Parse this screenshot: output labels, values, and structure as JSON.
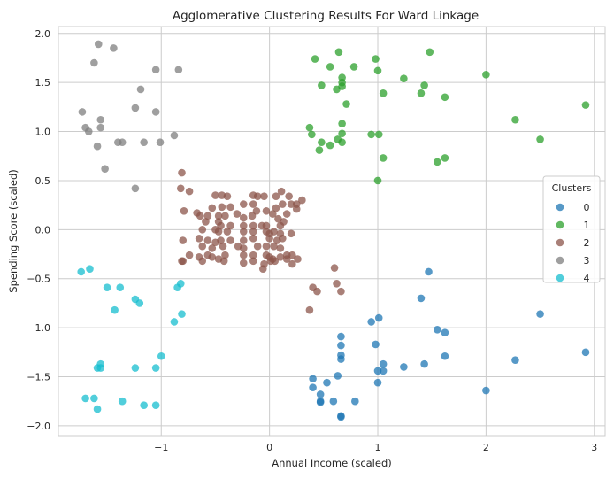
{
  "chart_data": {
    "type": "scatter",
    "title": "Agglomerative Clustering Results For Ward Linkage",
    "xlabel": "Annual Income (scaled)",
    "ylabel": "Spending Score (scaled)",
    "xlim": [
      -1.95,
      3.1
    ],
    "ylim": [
      -2.1,
      2.07
    ],
    "xticks": [
      -1,
      0,
      1,
      2,
      3
    ],
    "yticks": [
      -2.0,
      -1.5,
      -1.0,
      -0.5,
      0.0,
      0.5,
      1.0,
      1.5,
      2.0
    ],
    "xtick_labels": [
      "−1",
      "0",
      "1",
      "2",
      "3"
    ],
    "ytick_labels": [
      "−2.0",
      "−1.5",
      "−1.0",
      "−0.5",
      "0.0",
      "0.5",
      "1.0",
      "1.5",
      "2.0"
    ],
    "grid": true,
    "legend": {
      "title": "Clusters",
      "placement": "center-right"
    },
    "series": [
      {
        "name": "0",
        "color": "#1f77b4",
        "points": [
          [
            1.47,
            -0.43
          ],
          [
            1.4,
            -0.7
          ],
          [
            0.94,
            -0.94
          ],
          [
            1.01,
            -0.9
          ],
          [
            1.55,
            -1.02
          ],
          [
            1.62,
            -1.05
          ],
          [
            2.5,
            -0.86
          ],
          [
            0.66,
            -1.09
          ],
          [
            0.98,
            -1.17
          ],
          [
            0.66,
            -1.18
          ],
          [
            0.66,
            -1.28
          ],
          [
            0.66,
            -1.32
          ],
          [
            1.62,
            -1.29
          ],
          [
            2.92,
            -1.25
          ],
          [
            2.27,
            -1.33
          ],
          [
            1.05,
            -1.37
          ],
          [
            1.43,
            -1.37
          ],
          [
            1.24,
            -1.4
          ],
          [
            1.05,
            -1.44
          ],
          [
            1.0,
            -1.44
          ],
          [
            0.4,
            -1.52
          ],
          [
            0.63,
            -1.49
          ],
          [
            0.4,
            -1.61
          ],
          [
            0.53,
            -1.56
          ],
          [
            1.0,
            -1.56
          ],
          [
            2.0,
            -1.64
          ],
          [
            0.47,
            -1.68
          ],
          [
            0.47,
            -1.75
          ],
          [
            0.59,
            -1.75
          ],
          [
            0.79,
            -1.75
          ],
          [
            0.66,
            -1.9
          ],
          [
            0.66,
            -1.91
          ],
          [
            0.47,
            -1.76
          ]
        ]
      },
      {
        "name": "1",
        "color": "#2ca02c",
        "points": [
          [
            0.42,
            1.74
          ],
          [
            0.64,
            1.81
          ],
          [
            0.98,
            1.74
          ],
          [
            1.48,
            1.81
          ],
          [
            0.56,
            1.66
          ],
          [
            0.78,
            1.66
          ],
          [
            1.0,
            1.62
          ],
          [
            0.48,
            1.47
          ],
          [
            0.67,
            1.55
          ],
          [
            0.67,
            1.5
          ],
          [
            0.62,
            1.43
          ],
          [
            0.67,
            1.46
          ],
          [
            1.24,
            1.54
          ],
          [
            1.43,
            1.47
          ],
          [
            1.05,
            1.39
          ],
          [
            1.4,
            1.39
          ],
          [
            1.62,
            1.35
          ],
          [
            2.0,
            1.58
          ],
          [
            0.71,
            1.28
          ],
          [
            2.92,
            1.27
          ],
          [
            2.27,
            1.12
          ],
          [
            0.37,
            1.04
          ],
          [
            0.67,
            1.08
          ],
          [
            0.39,
            0.97
          ],
          [
            0.67,
            0.98
          ],
          [
            0.94,
            0.97
          ],
          [
            1.01,
            0.97
          ],
          [
            0.48,
            0.89
          ],
          [
            0.56,
            0.86
          ],
          [
            0.63,
            0.92
          ],
          [
            0.67,
            0.89
          ],
          [
            0.46,
            0.81
          ],
          [
            2.5,
            0.92
          ],
          [
            1.05,
            0.73
          ],
          [
            1.55,
            0.69
          ],
          [
            1.62,
            0.73
          ],
          [
            1.0,
            0.5
          ]
        ]
      },
      {
        "name": "2",
        "color": "#8c564b",
        "points": [
          [
            -0.81,
            0.58
          ],
          [
            -0.82,
            0.42
          ],
          [
            -0.74,
            0.39
          ],
          [
            -0.5,
            0.35
          ],
          [
            -0.44,
            0.35
          ],
          [
            -0.39,
            0.34
          ],
          [
            -0.15,
            0.35
          ],
          [
            -0.11,
            0.34
          ],
          [
            -0.05,
            0.34
          ],
          [
            0.11,
            0.39
          ],
          [
            0.06,
            0.34
          ],
          [
            0.18,
            0.34
          ],
          [
            -0.79,
            0.19
          ],
          [
            -0.67,
            0.17
          ],
          [
            -0.53,
            0.22
          ],
          [
            -0.44,
            0.23
          ],
          [
            -0.36,
            0.23
          ],
          [
            -0.24,
            0.26
          ],
          [
            -0.15,
            0.26
          ],
          [
            -0.12,
            0.19
          ],
          [
            -0.03,
            0.19
          ],
          [
            0.12,
            0.26
          ],
          [
            0.06,
            0.22
          ],
          [
            0.2,
            0.26
          ],
          [
            0.25,
            0.26
          ],
          [
            0.3,
            0.3
          ],
          [
            -0.64,
            0.14
          ],
          [
            -0.57,
            0.14
          ],
          [
            -0.47,
            0.14
          ],
          [
            -0.41,
            0.14
          ],
          [
            -0.3,
            0.16
          ],
          [
            -0.24,
            0.12
          ],
          [
            -0.16,
            0.14
          ],
          [
            0.03,
            0.16
          ],
          [
            0.08,
            0.11
          ],
          [
            0.16,
            0.16
          ],
          [
            0.25,
            0.21
          ],
          [
            -0.59,
            0.08
          ],
          [
            -0.47,
            0.08
          ],
          [
            -0.45,
            0.04
          ],
          [
            -0.36,
            0.04
          ],
          [
            -0.24,
            0.04
          ],
          [
            -0.15,
            0.04
          ],
          [
            -0.07,
            0.04
          ],
          [
            -0.03,
            0.04
          ],
          [
            0.1,
            0.04
          ],
          [
            0.13,
            0.08
          ],
          [
            -0.62,
            0.0
          ],
          [
            -0.5,
            0.0
          ],
          [
            -0.47,
            -0.02
          ],
          [
            -0.39,
            -0.02
          ],
          [
            -0.24,
            -0.02
          ],
          [
            -0.15,
            -0.02
          ],
          [
            -0.03,
            -0.02
          ],
          [
            0.0,
            -0.04
          ],
          [
            0.04,
            -0.02
          ],
          [
            0.1,
            -0.04
          ],
          [
            0.2,
            -0.04
          ],
          [
            -0.8,
            -0.11
          ],
          [
            -0.65,
            -0.09
          ],
          [
            -0.57,
            -0.11
          ],
          [
            -0.5,
            -0.13
          ],
          [
            -0.45,
            -0.11
          ],
          [
            -0.36,
            -0.11
          ],
          [
            -0.24,
            -0.11
          ],
          [
            -0.15,
            -0.09
          ],
          [
            0.0,
            -0.09
          ],
          [
            0.07,
            -0.11
          ],
          [
            0.12,
            -0.09
          ],
          [
            -0.62,
            -0.17
          ],
          [
            -0.53,
            -0.19
          ],
          [
            -0.43,
            -0.17
          ],
          [
            -0.29,
            -0.17
          ],
          [
            -0.24,
            -0.19
          ],
          [
            -0.11,
            -0.17
          ],
          [
            -0.03,
            -0.17
          ],
          [
            0.04,
            -0.17
          ],
          [
            0.1,
            -0.19
          ],
          [
            -0.74,
            -0.26
          ],
          [
            -0.65,
            -0.28
          ],
          [
            -0.57,
            -0.26
          ],
          [
            -0.53,
            -0.28
          ],
          [
            -0.41,
            -0.26
          ],
          [
            -0.24,
            -0.26
          ],
          [
            -0.15,
            -0.26
          ],
          [
            -0.03,
            -0.26
          ],
          [
            0.0,
            -0.28
          ],
          [
            0.03,
            -0.3
          ],
          [
            0.1,
            -0.28
          ],
          [
            0.16,
            -0.26
          ],
          [
            0.21,
            -0.26
          ],
          [
            -0.81,
            -0.32
          ],
          [
            -0.8,
            -0.32
          ],
          [
            -0.62,
            -0.32
          ],
          [
            -0.47,
            -0.3
          ],
          [
            -0.42,
            -0.32
          ],
          [
            -0.24,
            -0.34
          ],
          [
            -0.15,
            -0.32
          ],
          [
            -0.05,
            -0.35
          ],
          [
            0.01,
            -0.32
          ],
          [
            0.05,
            -0.32
          ],
          [
            0.16,
            -0.3
          ],
          [
            0.21,
            -0.35
          ],
          [
            0.26,
            -0.3
          ],
          [
            -0.06,
            -0.4
          ],
          [
            0.6,
            -0.39
          ],
          [
            0.4,
            -0.59
          ],
          [
            0.62,
            -0.55
          ],
          [
            0.66,
            -0.63
          ],
          [
            0.44,
            -0.63
          ],
          [
            0.37,
            -0.82
          ]
        ]
      },
      {
        "name": "3",
        "color": "#7f7f7f",
        "points": [
          [
            -1.58,
            1.89
          ],
          [
            -1.44,
            1.85
          ],
          [
            -1.62,
            1.7
          ],
          [
            -1.05,
            1.63
          ],
          [
            -0.84,
            1.63
          ],
          [
            -1.19,
            1.43
          ],
          [
            -1.24,
            1.24
          ],
          [
            -1.05,
            1.2
          ],
          [
            -1.73,
            1.2
          ],
          [
            -1.56,
            1.12
          ],
          [
            -1.7,
            1.04
          ],
          [
            -1.67,
            1.0
          ],
          [
            -1.56,
            1.04
          ],
          [
            -1.59,
            0.85
          ],
          [
            -1.4,
            0.89
          ],
          [
            -1.36,
            0.89
          ],
          [
            -1.16,
            0.89
          ],
          [
            -1.01,
            0.89
          ],
          [
            -0.88,
            0.96
          ],
          [
            -1.52,
            0.62
          ],
          [
            -1.24,
            0.42
          ]
        ]
      },
      {
        "name": "4",
        "color": "#17becf",
        "points": [
          [
            -1.74,
            -0.43
          ],
          [
            -1.66,
            -0.4
          ],
          [
            -1.5,
            -0.59
          ],
          [
            -1.38,
            -0.59
          ],
          [
            -1.43,
            -0.82
          ],
          [
            -1.24,
            -0.71
          ],
          [
            -1.2,
            -0.75
          ],
          [
            -0.85,
            -0.59
          ],
          [
            -0.82,
            -0.55
          ],
          [
            -0.81,
            -0.86
          ],
          [
            -0.88,
            -0.94
          ],
          [
            -1.0,
            -1.29
          ],
          [
            -1.05,
            -1.41
          ],
          [
            -1.24,
            -1.41
          ],
          [
            -1.56,
            -1.37
          ],
          [
            -1.59,
            -1.41
          ],
          [
            -1.36,
            -1.75
          ],
          [
            -1.56,
            -1.41
          ],
          [
            -1.7,
            -1.72
          ],
          [
            -1.62,
            -1.72
          ],
          [
            -1.59,
            -1.83
          ],
          [
            -1.16,
            -1.79
          ],
          [
            -1.05,
            -1.79
          ]
        ]
      }
    ]
  }
}
